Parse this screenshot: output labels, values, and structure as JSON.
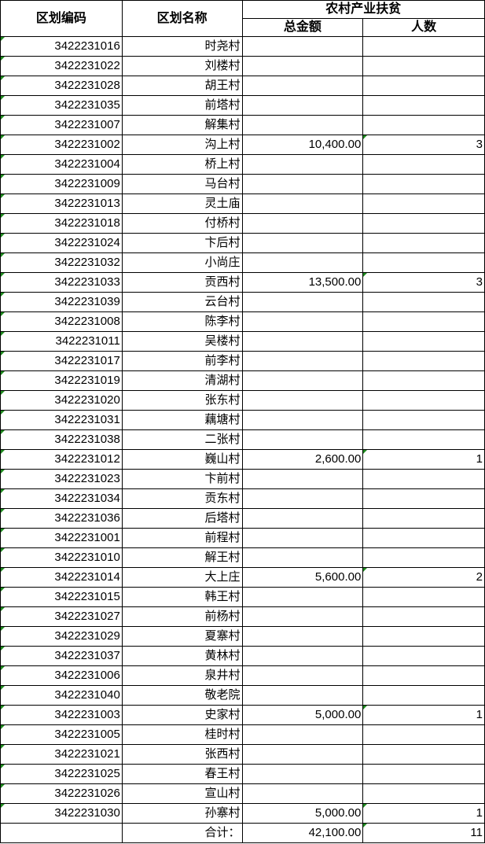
{
  "header": {
    "code": "区划编码",
    "name": "区划名称",
    "group": "农村产业扶贫",
    "amount": "总金额",
    "count": "人数"
  },
  "rows": [
    [
      "3422231016",
      "时尧村",
      "",
      ""
    ],
    [
      "3422231022",
      "刘楼村",
      "",
      ""
    ],
    [
      "3422231028",
      "胡王村",
      "",
      ""
    ],
    [
      "3422231035",
      "前塔村",
      "",
      ""
    ],
    [
      "3422231007",
      "解集村",
      "",
      ""
    ],
    [
      "3422231002",
      "沟上村",
      "10,400.00",
      "3"
    ],
    [
      "3422231004",
      "桥上村",
      "",
      ""
    ],
    [
      "3422231009",
      "马台村",
      "",
      ""
    ],
    [
      "3422231013",
      "灵土庙",
      "",
      ""
    ],
    [
      "3422231018",
      "付桥村",
      "",
      ""
    ],
    [
      "3422231024",
      "卞后村",
      "",
      ""
    ],
    [
      "3422231032",
      "小尚庄",
      "",
      ""
    ],
    [
      "3422231033",
      "贡西村",
      "13,500.00",
      "3"
    ],
    [
      "3422231039",
      "云台村",
      "",
      ""
    ],
    [
      "3422231008",
      "陈李村",
      "",
      ""
    ],
    [
      "3422231011",
      "吴楼村",
      "",
      ""
    ],
    [
      "3422231017",
      "前李村",
      "",
      ""
    ],
    [
      "3422231019",
      "清湖村",
      "",
      ""
    ],
    [
      "3422231020",
      "张东村",
      "",
      ""
    ],
    [
      "3422231031",
      "藕塘村",
      "",
      ""
    ],
    [
      "3422231038",
      "二张村",
      "",
      ""
    ],
    [
      "3422231012",
      "巍山村",
      "2,600.00",
      "1"
    ],
    [
      "3422231023",
      "卞前村",
      "",
      ""
    ],
    [
      "3422231034",
      "贡东村",
      "",
      ""
    ],
    [
      "3422231036",
      "后塔村",
      "",
      ""
    ],
    [
      "3422231001",
      "前程村",
      "",
      ""
    ],
    [
      "3422231010",
      "解王村",
      "",
      ""
    ],
    [
      "3422231014",
      "大上庄",
      "5,600.00",
      "2"
    ],
    [
      "3422231015",
      "韩王村",
      "",
      ""
    ],
    [
      "3422231027",
      "前杨村",
      "",
      ""
    ],
    [
      "3422231029",
      "夏寨村",
      "",
      ""
    ],
    [
      "3422231037",
      "黄林村",
      "",
      ""
    ],
    [
      "3422231006",
      "泉井村",
      "",
      ""
    ],
    [
      "3422231040",
      "敬老院",
      "",
      ""
    ],
    [
      "3422231003",
      "史家村",
      "5,000.00",
      "1"
    ],
    [
      "3422231005",
      "桂时村",
      "",
      ""
    ],
    [
      "3422231021",
      "张西村",
      "",
      ""
    ],
    [
      "3422231025",
      "春王村",
      "",
      ""
    ],
    [
      "3422231026",
      "宣山村",
      "",
      ""
    ],
    [
      "3422231030",
      "孙寨村",
      "5,000.00",
      "1"
    ]
  ],
  "total": {
    "label": "合计：",
    "amount": "42,100.00",
    "count": "11"
  },
  "colors": {
    "indicator": "#1e8a1e",
    "border": "#000000"
  }
}
